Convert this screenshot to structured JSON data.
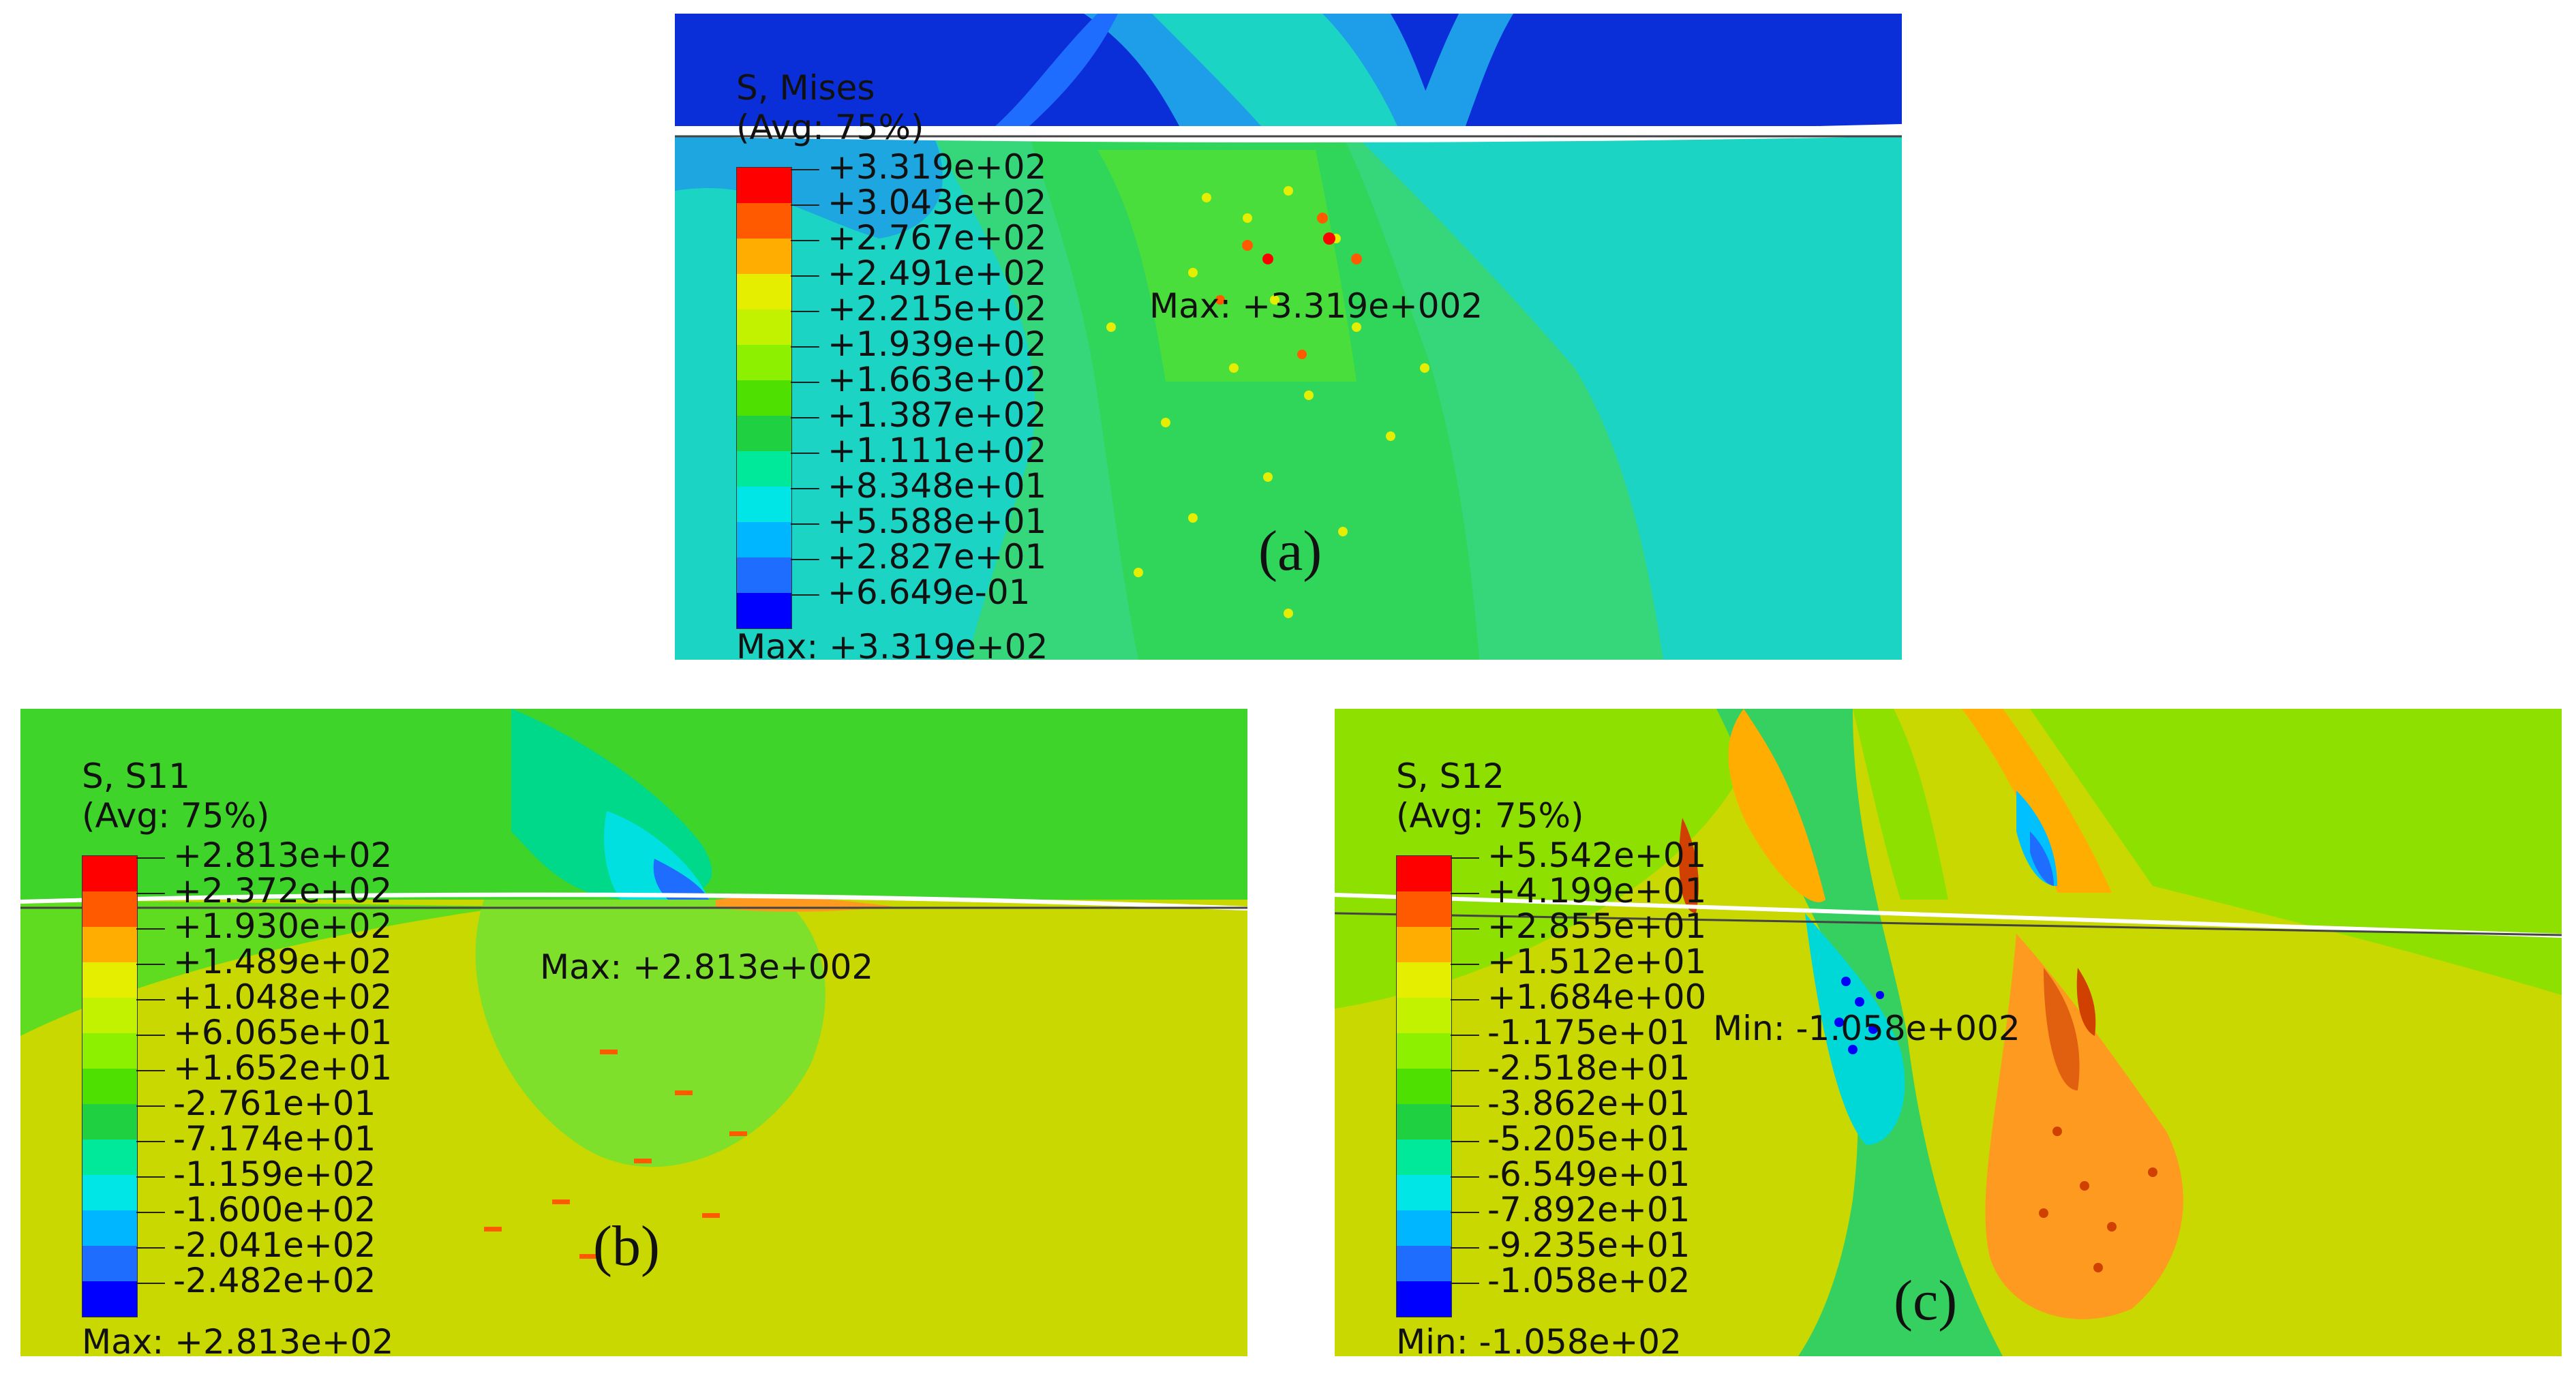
{
  "panels": {
    "a": {
      "label": "(a)",
      "title_line1": "S, Mises",
      "title_line2": "(Avg: 75%)",
      "annotation": "Max: +3.319e+002",
      "footer": "Max: +3.319e+02",
      "legend_values": [
        "+3.319e+02",
        "+3.043e+02",
        "+2.767e+02",
        "+2.491e+02",
        "+2.215e+02",
        "+1.939e+02",
        "+1.663e+02",
        "+1.387e+02",
        "+1.111e+02",
        "+8.348e+01",
        "+5.588e+01",
        "+2.827e+01",
        "+6.649e-01"
      ]
    },
    "b": {
      "label": "(b)",
      "title_line1": "S, S11",
      "title_line2": "(Avg: 75%)",
      "annotation": "Max: +2.813e+002",
      "footer": "Max: +2.813e+02",
      "legend_values": [
        "+2.813e+02",
        "+2.372e+02",
        "+1.930e+02",
        "+1.489e+02",
        "+1.048e+02",
        "+6.065e+01",
        "+1.652e+01",
        "-2.761e+01",
        "-7.174e+01",
        "-1.159e+02",
        "-1.600e+02",
        "-2.041e+02",
        "-2.482e+02"
      ]
    },
    "c": {
      "label": "(c)",
      "title_line1": "S, S12",
      "title_line2": "(Avg: 75%)",
      "annotation": "Min: -1.058e+002",
      "footer": "Min: -1.058e+02",
      "legend_values": [
        "+5.542e+01",
        "+4.199e+01",
        "+2.855e+01",
        "+1.512e+01",
        "+1.684e+00",
        "-1.175e+01",
        "-2.518e+01",
        "-3.862e+01",
        "-5.205e+01",
        "-6.549e+01",
        "-7.892e+01",
        "-9.235e+01",
        "-1.058e+02"
      ]
    }
  },
  "colormap": [
    "#ff0000",
    "#ff5a00",
    "#ffad00",
    "#e6ee00",
    "#c2f200",
    "#8cf000",
    "#4ee000",
    "#1fd040",
    "#00e89a",
    "#00e5e5",
    "#00b6ff",
    "#1e6dff",
    "#0000ff"
  ]
}
